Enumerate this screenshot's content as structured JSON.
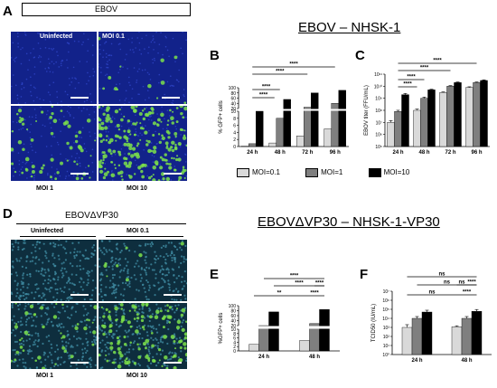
{
  "panels": {
    "A": "A",
    "B": "B",
    "C": "C",
    "D": "D",
    "E": "E",
    "F": "F"
  },
  "titles": {
    "top": "EBOV – NHSK-1",
    "bottom": "EBOVΔVP30 – NHSK-1-VP30"
  },
  "micrographs_top": {
    "header": "EBOV",
    "labels": [
      "Uninfected",
      "MOI 0.1",
      "MOI 1",
      "MOI 10"
    ]
  },
  "micrographs_bottom": {
    "header": "EBOVΔVP30",
    "labels": [
      "Uninfected",
      "MOI 0.1",
      "MOI 1",
      "MOI 10"
    ]
  },
  "legend": {
    "items": [
      {
        "label": "MOI=0.1",
        "color": "#d9d9d9"
      },
      {
        "label": "MOI=1",
        "color": "#7f7f7f"
      },
      {
        "label": "MOI=10",
        "color": "#000000"
      }
    ]
  },
  "colors": {
    "moi01": "#d9d9d9",
    "moi1": "#7f7f7f",
    "moi10": "#000000",
    "dapi": "#1a2a8a",
    "gfp": "#7be04a"
  },
  "chart_data": [
    {
      "id": "B",
      "type": "bar",
      "ylabel": "% GFP+ cells",
      "categories": [
        "24 h",
        "48 h",
        "72 h",
        "96 h"
      ],
      "axis_break": [
        10,
        20
      ],
      "yticks_low": [
        "0",
        "2",
        "4",
        "6",
        "8",
        "10"
      ],
      "yticks_high": [
        "20",
        "40",
        "60",
        "80",
        "100"
      ],
      "series": [
        {
          "name": "MOI=0.1",
          "values": [
            0.1,
            1,
            3,
            5
          ]
        },
        {
          "name": "MOI=1",
          "values": [
            0.8,
            8,
            25,
            40
          ]
        },
        {
          "name": "MOI=10",
          "values": [
            10,
            55,
            80,
            90
          ]
        }
      ],
      "significance": [
        "****",
        "****",
        "****",
        "****"
      ]
    },
    {
      "id": "C",
      "type": "bar",
      "ylabel": "EBOV titer (FFU/mL)",
      "scale": "log",
      "ylim": [
        100000,
        100000000000
      ],
      "yticks": [
        "10⁵",
        "10⁶",
        "10⁷",
        "10⁸",
        "10⁹",
        "10¹⁰",
        "10¹¹"
      ],
      "categories": [
        "24 h",
        "48 h",
        "72 h",
        "96 h"
      ],
      "series": [
        {
          "name": "MOI=0.1",
          "values": [
            10000000,
            100000000,
            3000000000,
            8000000000
          ]
        },
        {
          "name": "MOI=1",
          "values": [
            80000000,
            1000000000,
            10000000000,
            20000000000
          ]
        },
        {
          "name": "MOI=10",
          "values": [
            2000000000,
            5000000000,
            20000000000,
            30000000000
          ]
        }
      ],
      "errors": [
        [
          0.15,
          0.1,
          0.1
        ],
        [
          0.1,
          0.1,
          0.05
        ],
        [
          0.05,
          0.05,
          0.05
        ],
        [
          0.05,
          0.05,
          0.05
        ]
      ],
      "significance": [
        "****",
        "****",
        "****",
        "****"
      ]
    },
    {
      "id": "E",
      "type": "bar",
      "ylabel": "%GFP+ cells",
      "categories": [
        "24 h",
        "48 h"
      ],
      "axis_break": [
        10,
        20
      ],
      "yticks_low": [
        "0",
        "2",
        "4",
        "6",
        "8",
        "10"
      ],
      "yticks_high": [
        "20",
        "40",
        "60",
        "80",
        "100"
      ],
      "series": [
        {
          "name": "MOI=0.1",
          "values": [
            3,
            4.8
          ]
        },
        {
          "name": "MOI=1",
          "values": [
            20,
            28
          ]
        },
        {
          "name": "MOI=10",
          "values": [
            75,
            85
          ]
        }
      ],
      "significance": [
        "****",
        "****",
        "**",
        "****",
        "****"
      ]
    },
    {
      "id": "F",
      "type": "bar",
      "ylabel": "TCID50 (IU/mL)",
      "scale": "log",
      "ylim": [
        1,
        10000000
      ],
      "yticks": [
        "10⁰",
        "10¹",
        "10²",
        "10³",
        "10⁴",
        "10⁵",
        "10⁶",
        "10⁷"
      ],
      "categories": [
        "24 h",
        "48 h"
      ],
      "series": [
        {
          "name": "MOI=0.1",
          "values": [
            1000,
            1200
          ]
        },
        {
          "name": "MOI=1",
          "values": [
            10000,
            10000
          ]
        },
        {
          "name": "MOI=10",
          "values": [
            50000,
            60000
          ]
        }
      ],
      "errors": [
        [
          0.3,
          0.2,
          0.2
        ],
        [
          0.1,
          0.2,
          0.2
        ]
      ],
      "significance": [
        "ns",
        "ns",
        "ns",
        "ns",
        "****",
        "****"
      ]
    }
  ]
}
